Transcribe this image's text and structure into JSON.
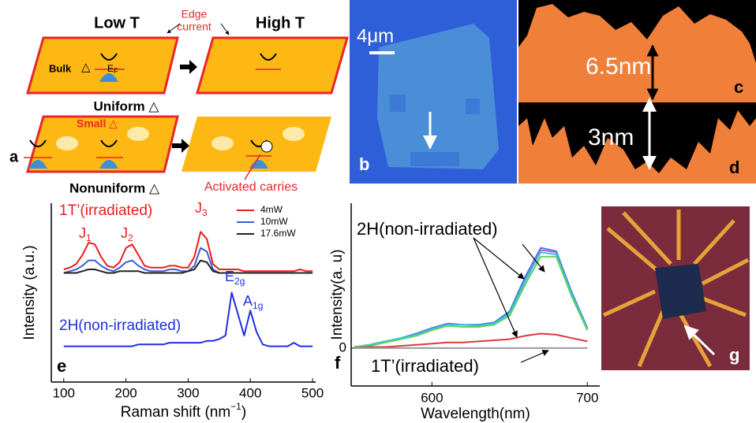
{
  "panels": {
    "a": {
      "label": "a",
      "low_t": "Low T",
      "high_t": "High T",
      "edge": "Edge",
      "current": "current",
      "bulk": "Bulk",
      "delta": "△",
      "ef_base": "E",
      "ef_sub": "F",
      "uniform": "Uniform △",
      "small": "Small △",
      "nonuniform": "Nonuniform △",
      "activated": "Activated carries"
    },
    "b": {
      "label": "b",
      "scale": "4μm"
    },
    "c": {
      "label": "c",
      "height": "6.5nm"
    },
    "d": {
      "label": "d",
      "height": "3nm"
    },
    "g": {
      "label": "g"
    }
  },
  "chart_data": [
    {
      "type": "line",
      "panel_label": "e",
      "ylabel": "Intensity (a.u.)",
      "xlabel": {
        "text": "Raman shift (nm",
        "sup": "−1",
        "end": ")"
      },
      "xlim": [
        80,
        505
      ],
      "xticks": [
        100,
        200,
        300,
        400,
        500
      ],
      "ylim": [
        0,
        100
      ],
      "legend": "upper right",
      "annotations": [
        "1T’(irradiated)",
        "2H(non-irradiated)"
      ],
      "peak_labels": [
        {
          "base": "J",
          "sub": "1"
        },
        {
          "base": "J",
          "sub": "2"
        },
        {
          "base": "J",
          "sub": "3"
        },
        {
          "base": "E",
          "sub": "2g"
        },
        {
          "base": "A",
          "sub": "1g"
        }
      ],
      "x": [
        100,
        110,
        120,
        130,
        140,
        150,
        160,
        170,
        180,
        190,
        200,
        210,
        220,
        230,
        240,
        250,
        260,
        270,
        280,
        290,
        300,
        310,
        320,
        330,
        340,
        350,
        360,
        370,
        380,
        390,
        400,
        410,
        420,
        430,
        440,
        450,
        460,
        470,
        480,
        490,
        500
      ],
      "series": [
        {
          "name": "4mW",
          "color": "#ee1c1c",
          "values": [
            63,
            64,
            66,
            71,
            78,
            77,
            70,
            65,
            64,
            67,
            75,
            77,
            71,
            65,
            64,
            64,
            64,
            65,
            65,
            64,
            64,
            70,
            84,
            80,
            66,
            63,
            63,
            63,
            63,
            62,
            62,
            62,
            62,
            62,
            62,
            62,
            62,
            62,
            63,
            62,
            62
          ]
        },
        {
          "name": "10mW",
          "color": "#3b5bdb",
          "values": [
            61,
            62,
            63,
            65,
            68,
            68,
            65,
            63,
            62,
            64,
            67,
            68,
            65,
            63,
            62,
            62,
            62,
            63,
            63,
            62,
            62,
            65,
            75,
            73,
            63,
            61,
            61,
            61,
            61,
            61,
            61,
            61,
            61,
            61,
            61,
            61,
            61,
            61,
            61,
            61,
            61
          ]
        },
        {
          "name": "17.6mW",
          "color": "#222222",
          "values": [
            61,
            61,
            61,
            62,
            63,
            63,
            62,
            61,
            61,
            62,
            62,
            62,
            62,
            61,
            61,
            61,
            61,
            61,
            61,
            61,
            62,
            63,
            68,
            67,
            62,
            61,
            61,
            61,
            61,
            61,
            61,
            61,
            61,
            61,
            61,
            61,
            61,
            61,
            61,
            61,
            61
          ]
        },
        {
          "color": "#1f2fe0",
          "values": [
            20,
            20,
            20,
            20,
            20,
            20,
            20,
            20,
            20,
            20,
            20,
            20,
            21,
            21,
            21,
            21,
            21,
            22,
            22,
            22,
            22,
            22,
            22,
            23,
            23,
            24,
            26,
            50,
            38,
            26,
            40,
            28,
            21,
            20,
            20,
            20,
            20,
            22,
            20,
            20,
            20
          ]
        }
      ]
    },
    {
      "type": "line",
      "panel_label": "f",
      "ylabel": "Intensity(a. u)",
      "xlabel": "Wavelength(nm)",
      "xlim": [
        548,
        708
      ],
      "xticks": [
        600,
        700
      ],
      "ylim": [
        -34,
        130
      ],
      "yticks": [
        0
      ],
      "annotations": [
        "2H(non-irradiated)",
        "1T’(irradiated)"
      ],
      "x": [
        550,
        560,
        570,
        580,
        590,
        600,
        610,
        620,
        630,
        640,
        650,
        660,
        670,
        680,
        690,
        700
      ],
      "series": [
        {
          "color": "#d45bd4",
          "values": [
            1,
            3,
            6,
            9,
            13,
            18,
            22,
            21,
            20,
            22,
            32,
            62,
            88,
            86,
            50,
            18
          ]
        },
        {
          "color": "#4a7ee8",
          "values": [
            1,
            3,
            6,
            9,
            13,
            18,
            22,
            21,
            21,
            23,
            33,
            64,
            90,
            87,
            50,
            18
          ]
        },
        {
          "color": "#34c6d8",
          "values": [
            1,
            3,
            6,
            9,
            12,
            17,
            21,
            21,
            20,
            22,
            31,
            60,
            86,
            84,
            48,
            17
          ]
        },
        {
          "color": "#5fd35f",
          "values": [
            1,
            2,
            5,
            8,
            11,
            16,
            20,
            19,
            19,
            21,
            29,
            57,
            82,
            82,
            46,
            16
          ]
        },
        {
          "color": "#d93b3b",
          "values": [
            0,
            1,
            1,
            2,
            3,
            4,
            5,
            5,
            6,
            7,
            8,
            11,
            13,
            12,
            9,
            6
          ]
        },
        {
          "color": "#999999",
          "values": [
            0,
            0,
            0,
            0,
            0,
            0,
            0,
            0,
            0,
            0,
            0,
            0,
            0,
            0,
            0,
            0
          ]
        }
      ]
    }
  ]
}
